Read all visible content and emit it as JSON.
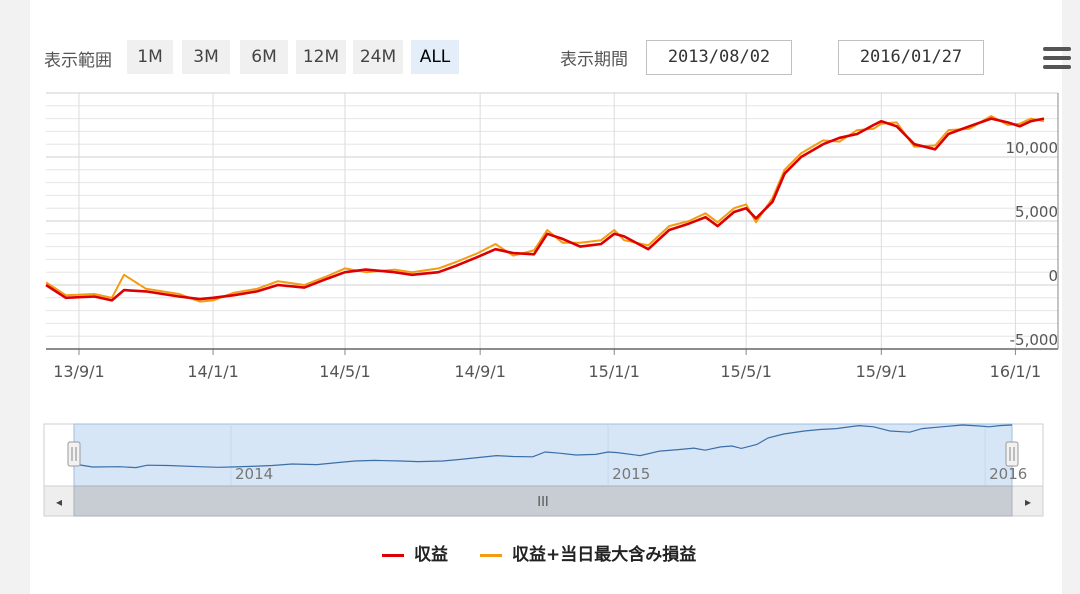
{
  "toolbar": {
    "range_label": "表示範囲",
    "ranges": [
      {
        "label": "1M",
        "active": false
      },
      {
        "label": "3M",
        "active": false
      },
      {
        "label": "6M",
        "active": false
      },
      {
        "label": "12M",
        "active": false
      },
      {
        "label": "24M",
        "active": false
      },
      {
        "label": "ALL",
        "active": true
      }
    ],
    "period_label": "表示期間",
    "from_date": "2013/08/02",
    "separator": "〜",
    "to_date": "2016/01/27",
    "menu_icon": "hamburger-menu-icon"
  },
  "chart_data": {
    "type": "line",
    "x_ticks": [
      "13/9/1",
      "14/1/1",
      "14/5/1",
      "14/9/1",
      "15/1/1",
      "15/5/1",
      "15/9/1",
      "16/1/1"
    ],
    "y_ticks": [
      "10,000",
      "5,000",
      "0",
      "-5,000"
    ],
    "ylim": [
      -5000,
      15000
    ],
    "grid": true,
    "legend_position": "bottom",
    "series": [
      {
        "name": "収益",
        "color": "#dd0000",
        "points": [
          [
            "2013-08-02",
            0
          ],
          [
            "2013-08-20",
            -1000
          ],
          [
            "2013-09-15",
            -900
          ],
          [
            "2013-10-01",
            -1200
          ],
          [
            "2013-10-12",
            -400
          ],
          [
            "2013-11-01",
            -500
          ],
          [
            "2013-12-01",
            -900
          ],
          [
            "2013-12-20",
            -1100
          ],
          [
            "2014-01-01",
            -1000
          ],
          [
            "2014-01-20",
            -800
          ],
          [
            "2014-02-10",
            -500
          ],
          [
            "2014-03-01",
            0
          ],
          [
            "2014-03-25",
            -200
          ],
          [
            "2014-04-15",
            500
          ],
          [
            "2014-05-01",
            1000
          ],
          [
            "2014-05-20",
            1200
          ],
          [
            "2014-06-15",
            1000
          ],
          [
            "2014-07-01",
            800
          ],
          [
            "2014-07-25",
            1000
          ],
          [
            "2014-08-10",
            1500
          ],
          [
            "2014-08-30",
            2200
          ],
          [
            "2014-09-15",
            2800
          ],
          [
            "2014-10-01",
            2500
          ],
          [
            "2014-10-20",
            2400
          ],
          [
            "2014-11-01",
            4000
          ],
          [
            "2014-11-15",
            3600
          ],
          [
            "2014-12-01",
            3000
          ],
          [
            "2014-12-20",
            3200
          ],
          [
            "2015-01-01",
            4000
          ],
          [
            "2015-01-10",
            3800
          ],
          [
            "2015-02-01",
            2800
          ],
          [
            "2015-02-20",
            4300
          ],
          [
            "2015-03-10",
            4800
          ],
          [
            "2015-03-25",
            5300
          ],
          [
            "2015-04-05",
            4600
          ],
          [
            "2015-04-20",
            5700
          ],
          [
            "2015-05-01",
            6000
          ],
          [
            "2015-05-10",
            5200
          ],
          [
            "2015-05-25",
            6500
          ],
          [
            "2015-06-05",
            8700
          ],
          [
            "2015-06-20",
            10000
          ],
          [
            "2015-07-10",
            11000
          ],
          [
            "2015-07-25",
            11500
          ],
          [
            "2015-08-10",
            11800
          ],
          [
            "2015-08-25",
            12500
          ],
          [
            "2015-09-01",
            12800
          ],
          [
            "2015-09-15",
            12400
          ],
          [
            "2015-10-01",
            11000
          ],
          [
            "2015-10-20",
            10600
          ],
          [
            "2015-11-01",
            11800
          ],
          [
            "2015-11-20",
            12400
          ],
          [
            "2015-12-10",
            13000
          ],
          [
            "2015-12-25",
            12700
          ],
          [
            "2016-01-05",
            12400
          ],
          [
            "2016-01-15",
            12800
          ],
          [
            "2016-01-27",
            13000
          ]
        ]
      },
      {
        "name": "収益+当日最大含み損益",
        "color": "#f39c12",
        "points": [
          [
            "2013-08-02",
            200
          ],
          [
            "2013-08-20",
            -800
          ],
          [
            "2013-09-15",
            -700
          ],
          [
            "2013-10-01",
            -1000
          ],
          [
            "2013-10-12",
            800
          ],
          [
            "2013-11-01",
            -300
          ],
          [
            "2013-12-01",
            -700
          ],
          [
            "2013-12-20",
            -1300
          ],
          [
            "2014-01-01",
            -1200
          ],
          [
            "2014-01-20",
            -600
          ],
          [
            "2014-02-10",
            -300
          ],
          [
            "2014-03-01",
            300
          ],
          [
            "2014-03-25",
            0
          ],
          [
            "2014-04-15",
            700
          ],
          [
            "2014-05-01",
            1300
          ],
          [
            "2014-05-20",
            1000
          ],
          [
            "2014-06-15",
            1200
          ],
          [
            "2014-07-01",
            1000
          ],
          [
            "2014-07-25",
            1300
          ],
          [
            "2014-08-10",
            1800
          ],
          [
            "2014-08-30",
            2500
          ],
          [
            "2014-09-15",
            3200
          ],
          [
            "2014-10-01",
            2300
          ],
          [
            "2014-10-20",
            2700
          ],
          [
            "2014-11-01",
            4300
          ],
          [
            "2014-11-15",
            3300
          ],
          [
            "2014-12-01",
            3300
          ],
          [
            "2014-12-20",
            3500
          ],
          [
            "2015-01-01",
            4300
          ],
          [
            "2015-01-10",
            3500
          ],
          [
            "2015-02-01",
            3100
          ],
          [
            "2015-02-20",
            4600
          ],
          [
            "2015-03-10",
            5000
          ],
          [
            "2015-03-25",
            5600
          ],
          [
            "2015-04-05",
            4900
          ],
          [
            "2015-04-20",
            6000
          ],
          [
            "2015-05-01",
            6300
          ],
          [
            "2015-05-10",
            4900
          ],
          [
            "2015-05-25",
            6800
          ],
          [
            "2015-06-05",
            9000
          ],
          [
            "2015-06-20",
            10300
          ],
          [
            "2015-07-10",
            11300
          ],
          [
            "2015-07-25",
            11200
          ],
          [
            "2015-08-10",
            12100
          ],
          [
            "2015-08-25",
            12200
          ],
          [
            "2015-09-01",
            12600
          ],
          [
            "2015-09-15",
            12700
          ],
          [
            "2015-10-01",
            10800
          ],
          [
            "2015-10-20",
            10900
          ],
          [
            "2015-11-01",
            12100
          ],
          [
            "2015-11-20",
            12200
          ],
          [
            "2015-12-10",
            13200
          ],
          [
            "2015-12-25",
            12500
          ],
          [
            "2016-01-05",
            12600
          ],
          [
            "2016-01-15",
            13000
          ],
          [
            "2016-01-27",
            12800
          ]
        ]
      }
    ],
    "navigator": {
      "year_labels": [
        "2014",
        "2015",
        "2016"
      ],
      "scroll_grip": "III",
      "left_arrow": "◂",
      "right_arrow": "▸"
    }
  },
  "legend": {
    "items": [
      {
        "label": "収益",
        "color": "#dd0000"
      },
      {
        "label": "収益+当日最大含み損益",
        "color": "#f39c12"
      }
    ]
  }
}
